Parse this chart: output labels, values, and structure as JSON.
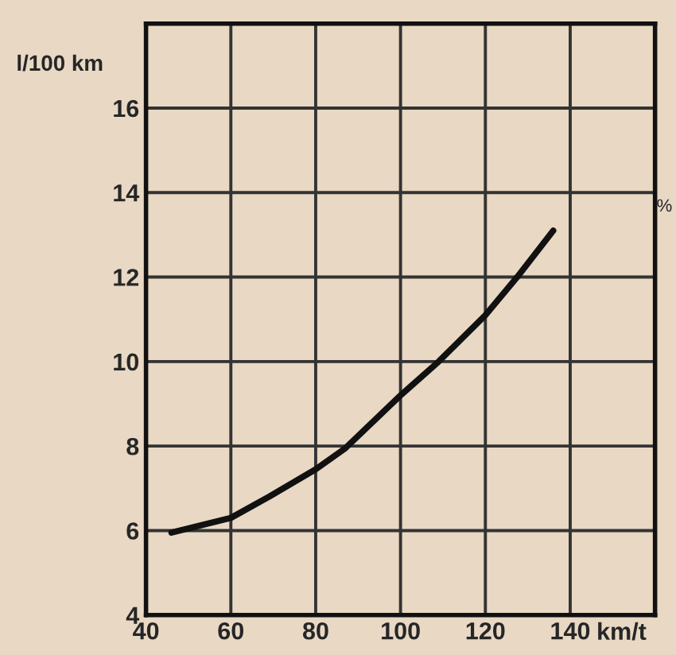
{
  "chart_data": {
    "type": "line",
    "ylabel": "l/100 km",
    "xlabel": "km/t",
    "x": [
      46,
      60,
      69,
      80,
      87,
      100,
      109,
      120,
      127.5,
      136
    ],
    "series": [
      {
        "color": "#111111",
        "values": [
          5.95,
          6.3,
          6.8,
          7.45,
          7.95,
          9.2,
          10.0,
          11.1,
          12.0,
          13.1
        ]
      }
    ],
    "xlim": [
      40,
      160
    ],
    "xticks": [
      40,
      60,
      80,
      100,
      120,
      140,
      {
        "value": 160,
        "label": null
      }
    ],
    "ylim": [
      4,
      18
    ],
    "yticks": [
      4,
      6,
      8,
      10,
      12,
      14,
      16,
      {
        "value": 18,
        "label": null
      }
    ],
    "grid": true,
    "legend": false,
    "marker": "none",
    "line_style": "solid",
    "annotations": [
      "%"
    ]
  }
}
